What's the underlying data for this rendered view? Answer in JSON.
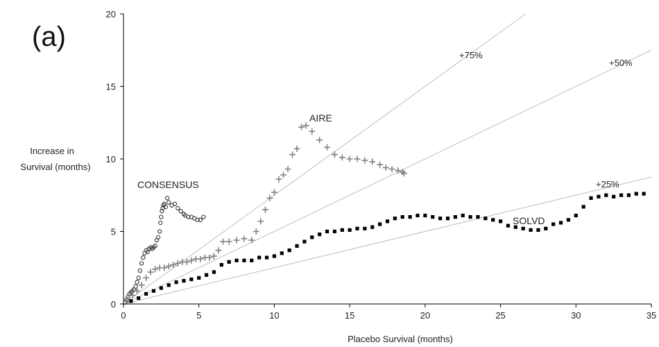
{
  "chart_data": {
    "type": "scatter",
    "panel_label": "(a)",
    "xlabel": "Placebo Survival (months)",
    "ylabel_lines": [
      "Increase in",
      "Survival (months)"
    ],
    "xlim": [
      0,
      35
    ],
    "ylim": [
      0,
      20
    ],
    "xticks": [
      0,
      5,
      10,
      15,
      20,
      25,
      30,
      35
    ],
    "yticks": [
      0,
      5,
      10,
      15,
      20
    ],
    "grid": false,
    "reference_lines": [
      {
        "label": "+25%",
        "slope": 0.25
      },
      {
        "label": "+50%",
        "slope": 0.5
      },
      {
        "label": "+75%",
        "slope": 0.75
      }
    ],
    "series": [
      {
        "name": "CONSENSUS",
        "marker": "circle",
        "color": "#333333",
        "points": [
          [
            0.1,
            0.1
          ],
          [
            0.2,
            0.3
          ],
          [
            0.3,
            0.5
          ],
          [
            0.4,
            0.7
          ],
          [
            0.5,
            0.8
          ],
          [
            0.6,
            0.9
          ],
          [
            0.7,
            1.0
          ],
          [
            0.8,
            1.2
          ],
          [
            0.9,
            1.5
          ],
          [
            1.0,
            1.8
          ],
          [
            1.1,
            2.3
          ],
          [
            1.2,
            2.8
          ],
          [
            1.3,
            3.2
          ],
          [
            1.4,
            3.5
          ],
          [
            1.5,
            3.7
          ],
          [
            1.6,
            3.6
          ],
          [
            1.7,
            3.8
          ],
          [
            1.8,
            3.9
          ],
          [
            1.9,
            3.8
          ],
          [
            2.0,
            3.9
          ],
          [
            2.1,
            4.0
          ],
          [
            2.2,
            4.4
          ],
          [
            2.3,
            4.6
          ],
          [
            2.4,
            5.0
          ],
          [
            2.45,
            5.6
          ],
          [
            2.5,
            6.0
          ],
          [
            2.55,
            6.4
          ],
          [
            2.6,
            6.6
          ],
          [
            2.65,
            6.8
          ],
          [
            2.7,
            6.9
          ],
          [
            2.8,
            6.7
          ],
          [
            2.9,
            7.3
          ],
          [
            3.0,
            7.0
          ],
          [
            3.2,
            6.8
          ],
          [
            3.4,
            6.9
          ],
          [
            3.6,
            6.6
          ],
          [
            3.8,
            6.4
          ],
          [
            4.0,
            6.2
          ],
          [
            4.1,
            6.1
          ],
          [
            4.3,
            6.0
          ],
          [
            4.5,
            6.0
          ],
          [
            4.7,
            5.9
          ],
          [
            4.9,
            5.8
          ],
          [
            5.1,
            5.8
          ],
          [
            5.3,
            6.0
          ]
        ]
      },
      {
        "name": "AIRE",
        "marker": "plus",
        "color": "#808080",
        "points": [
          [
            0.3,
            0.3
          ],
          [
            0.6,
            0.6
          ],
          [
            0.9,
            0.9
          ],
          [
            1.2,
            1.3
          ],
          [
            1.5,
            1.8
          ],
          [
            1.8,
            2.2
          ],
          [
            2.1,
            2.4
          ],
          [
            2.4,
            2.5
          ],
          [
            2.7,
            2.5
          ],
          [
            3.0,
            2.6
          ],
          [
            3.3,
            2.7
          ],
          [
            3.6,
            2.8
          ],
          [
            3.9,
            2.9
          ],
          [
            4.2,
            2.9
          ],
          [
            4.5,
            3.0
          ],
          [
            4.8,
            3.1
          ],
          [
            5.1,
            3.1
          ],
          [
            5.4,
            3.2
          ],
          [
            5.7,
            3.2
          ],
          [
            6.0,
            3.3
          ],
          [
            6.3,
            3.7
          ],
          [
            6.6,
            4.3
          ],
          [
            7.0,
            4.3
          ],
          [
            7.5,
            4.4
          ],
          [
            8.0,
            4.5
          ],
          [
            8.5,
            4.4
          ],
          [
            8.8,
            5.0
          ],
          [
            9.1,
            5.7
          ],
          [
            9.4,
            6.5
          ],
          [
            9.7,
            7.3
          ],
          [
            10.0,
            7.7
          ],
          [
            10.3,
            8.6
          ],
          [
            10.6,
            8.9
          ],
          [
            10.9,
            9.3
          ],
          [
            11.2,
            10.3
          ],
          [
            11.5,
            10.7
          ],
          [
            11.8,
            12.2
          ],
          [
            12.1,
            12.3
          ],
          [
            12.5,
            11.9
          ],
          [
            13.0,
            11.3
          ],
          [
            13.5,
            10.8
          ],
          [
            14.0,
            10.3
          ],
          [
            14.5,
            10.1
          ],
          [
            15.0,
            10.0
          ],
          [
            15.5,
            10.0
          ],
          [
            16.0,
            9.9
          ],
          [
            16.5,
            9.8
          ],
          [
            17.0,
            9.6
          ],
          [
            17.4,
            9.4
          ],
          [
            17.8,
            9.3
          ],
          [
            18.2,
            9.2
          ],
          [
            18.5,
            9.1
          ],
          [
            18.6,
            9.0
          ]
        ]
      },
      {
        "name": "SOLVD",
        "marker": "square",
        "color": "#000000",
        "points": [
          [
            0.5,
            0.2
          ],
          [
            1.0,
            0.4
          ],
          [
            1.5,
            0.7
          ],
          [
            2.0,
            0.9
          ],
          [
            2.5,
            1.1
          ],
          [
            3.0,
            1.3
          ],
          [
            3.5,
            1.5
          ],
          [
            4.0,
            1.6
          ],
          [
            4.5,
            1.7
          ],
          [
            5.0,
            1.8
          ],
          [
            5.5,
            2.0
          ],
          [
            6.0,
            2.2
          ],
          [
            6.5,
            2.7
          ],
          [
            7.0,
            2.9
          ],
          [
            7.5,
            3.0
          ],
          [
            8.0,
            3.0
          ],
          [
            8.5,
            3.0
          ],
          [
            9.0,
            3.2
          ],
          [
            9.5,
            3.2
          ],
          [
            10.0,
            3.3
          ],
          [
            10.5,
            3.5
          ],
          [
            11.0,
            3.7
          ],
          [
            11.5,
            4.0
          ],
          [
            12.0,
            4.3
          ],
          [
            12.5,
            4.6
          ],
          [
            13.0,
            4.8
          ],
          [
            13.5,
            5.0
          ],
          [
            14.0,
            5.0
          ],
          [
            14.5,
            5.1
          ],
          [
            15.0,
            5.1
          ],
          [
            15.5,
            5.2
          ],
          [
            16.0,
            5.2
          ],
          [
            16.5,
            5.3
          ],
          [
            17.0,
            5.5
          ],
          [
            17.5,
            5.7
          ],
          [
            18.0,
            5.9
          ],
          [
            18.5,
            6.0
          ],
          [
            19.0,
            6.0
          ],
          [
            19.5,
            6.1
          ],
          [
            20.0,
            6.1
          ],
          [
            20.5,
            6.0
          ],
          [
            21.0,
            5.9
          ],
          [
            21.5,
            5.9
          ],
          [
            22.0,
            6.0
          ],
          [
            22.5,
            6.1
          ],
          [
            23.0,
            6.0
          ],
          [
            23.5,
            6.0
          ],
          [
            24.0,
            5.9
          ],
          [
            24.5,
            5.8
          ],
          [
            25.0,
            5.7
          ],
          [
            25.5,
            5.4
          ],
          [
            26.0,
            5.3
          ],
          [
            26.5,
            5.2
          ],
          [
            27.0,
            5.1
          ],
          [
            27.5,
            5.1
          ],
          [
            28.0,
            5.2
          ],
          [
            28.5,
            5.5
          ],
          [
            29.0,
            5.6
          ],
          [
            29.5,
            5.8
          ],
          [
            30.0,
            6.1
          ],
          [
            30.5,
            6.7
          ],
          [
            31.0,
            7.3
          ],
          [
            31.5,
            7.4
          ],
          [
            32.0,
            7.5
          ],
          [
            32.5,
            7.4
          ],
          [
            33.0,
            7.5
          ],
          [
            33.5,
            7.5
          ],
          [
            34.0,
            7.6
          ],
          [
            34.5,
            7.6
          ]
        ]
      }
    ]
  }
}
